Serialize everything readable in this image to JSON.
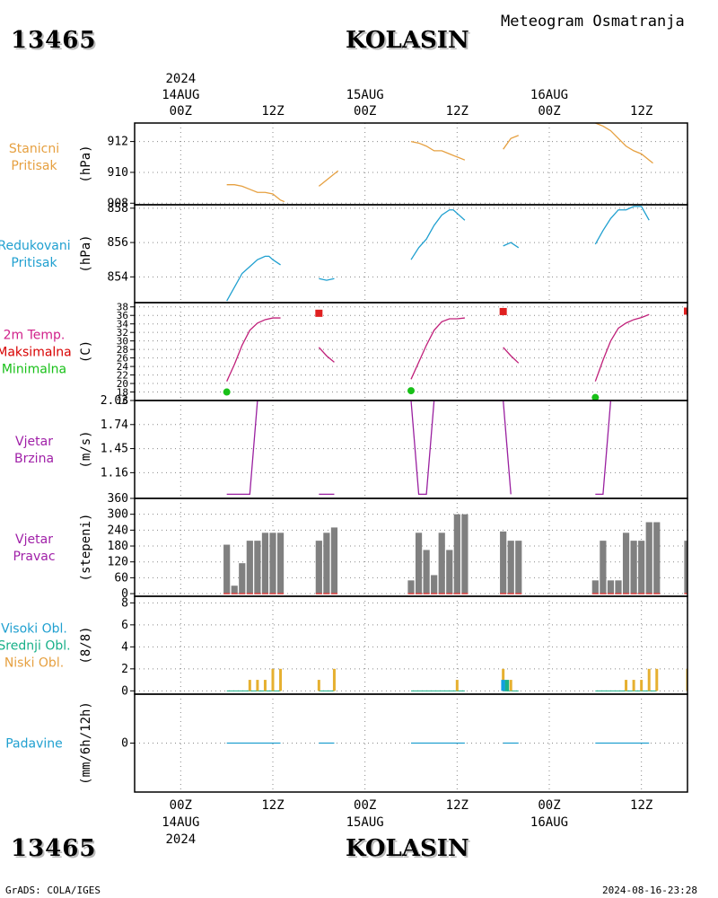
{
  "header": {
    "station_id": "13465",
    "station_name": "KOLASIN",
    "subtitle": "Meteogram Osmatranja"
  },
  "footer": {
    "station_id": "13465",
    "station_name": "KOLASIN",
    "credit": "GrADS: COLA/IGES",
    "timestamp": "2024-08-16-23:28"
  },
  "time_axis": {
    "year": "2024",
    "hours_range": [
      -6,
      66
    ],
    "ticks": [
      {
        "hour": 0,
        "label": "00Z",
        "date": "14AUG"
      },
      {
        "hour": 12,
        "label": "12Z",
        "date": ""
      },
      {
        "hour": 24,
        "label": "00Z",
        "date": "15AUG"
      },
      {
        "hour": 36,
        "label": "12Z",
        "date": ""
      },
      {
        "hour": 48,
        "label": "00Z",
        "date": "16AUG"
      },
      {
        "hour": 60,
        "label": "12Z",
        "date": ""
      }
    ]
  },
  "chart_data": [
    {
      "type": "line",
      "panel": "station-pressure",
      "labels": [
        "Stanicni",
        "Pritisak"
      ],
      "label_color": "#e6a040",
      "unit": "(hPa)",
      "ylim": [
        907.9,
        913.2
      ],
      "yticks": [
        908,
        910,
        912
      ],
      "series": [
        {
          "color": "#e6a040",
          "segments": [
            [
              [
                6,
                909.2
              ],
              [
                7,
                909.2
              ],
              [
                8,
                909.1
              ],
              [
                9,
                908.9
              ],
              [
                10,
                908.7
              ],
              [
                11,
                908.7
              ],
              [
                12,
                908.6
              ],
              [
                13,
                908.2
              ],
              [
                13.5,
                908.1
              ]
            ],
            [
              [
                18,
                909.1
              ],
              [
                19,
                909.5
              ],
              [
                20,
                909.9
              ],
              [
                20.5,
                910.1
              ]
            ],
            [
              [
                30,
                912.0
              ],
              [
                31,
                911.9
              ],
              [
                32,
                911.7
              ],
              [
                33,
                911.4
              ],
              [
                34,
                911.4
              ],
              [
                35,
                911.2
              ],
              [
                36,
                911.0
              ],
              [
                37,
                910.8
              ]
            ],
            [
              [
                42,
                911.5
              ],
              [
                43,
                912.2
              ],
              [
                44,
                912.4
              ]
            ],
            [
              [
                54,
                913.2
              ],
              [
                55,
                913.0
              ],
              [
                56,
                912.7
              ],
              [
                57,
                912.2
              ],
              [
                58,
                911.7
              ],
              [
                59,
                911.4
              ],
              [
                60,
                911.2
              ],
              [
                61,
                910.8
              ],
              [
                61.5,
                910.6
              ]
            ],
            [
              [
                66,
                909.7
              ],
              [
                67,
                909.7
              ],
              [
                68,
                911.5
              ]
            ]
          ]
        }
      ]
    },
    {
      "type": "line",
      "panel": "reduced-pressure",
      "labels": [
        "Redukovani",
        "Pritisak"
      ],
      "label_color": "#20a0d0",
      "unit": "(hPa)",
      "ylim": [
        852.5,
        858.2
      ],
      "yticks": [
        854,
        856,
        858
      ],
      "series": [
        {
          "color": "#20a0d0",
          "segments": [
            [
              [
                6,
                852.6
              ],
              [
                7,
                853.4
              ],
              [
                8,
                854.2
              ],
              [
                9,
                854.6
              ],
              [
                10,
                855.0
              ],
              [
                11,
                855.2
              ],
              [
                11.5,
                855.2
              ],
              [
                12,
                855.0
              ],
              [
                13,
                854.7
              ]
            ],
            [
              [
                18,
                853.9
              ],
              [
                19,
                853.8
              ],
              [
                20,
                853.9
              ]
            ],
            [
              [
                30,
                855.0
              ],
              [
                31,
                855.7
              ],
              [
                32,
                856.2
              ],
              [
                33,
                857.0
              ],
              [
                34,
                857.6
              ],
              [
                35,
                857.9
              ],
              [
                35.5,
                857.9
              ],
              [
                36,
                857.7
              ],
              [
                37,
                857.3
              ]
            ],
            [
              [
                42,
                855.8
              ],
              [
                43,
                856.0
              ],
              [
                44,
                855.7
              ]
            ],
            [
              [
                54,
                855.9
              ],
              [
                55,
                856.7
              ],
              [
                56,
                857.4
              ],
              [
                57,
                857.9
              ],
              [
                58,
                857.9
              ],
              [
                59,
                858.1
              ],
              [
                59.5,
                858.1
              ],
              [
                60,
                858.1
              ],
              [
                61,
                857.3
              ]
            ],
            [
              [
                66,
                854.5
              ],
              [
                67,
                854.1
              ],
              [
                68,
                855.4
              ]
            ]
          ]
        }
      ]
    },
    {
      "type": "line",
      "panel": "temperature",
      "labels": [
        "2m Temp.",
        "Maksimalna",
        "Minimalna"
      ],
      "label_colors": [
        "#d0208a",
        "#d80000",
        "#18c018"
      ],
      "unit": "(C)",
      "ylim": [
        16,
        39
      ],
      "yticks": [
        16,
        18,
        20,
        22,
        24,
        26,
        28,
        30,
        32,
        34,
        36,
        38
      ],
      "ytick_labels": [
        "16",
        "18",
        "20",
        "22",
        "24",
        "26",
        "28",
        "30",
        "32",
        "34",
        "36",
        "38"
      ],
      "series": [
        {
          "name": "2m Temp.",
          "color": "#c0207a",
          "segments": [
            [
              [
                6,
                20.5
              ],
              [
                7,
                24.5
              ],
              [
                8,
                29.0
              ],
              [
                9,
                32.5
              ],
              [
                10,
                34.2
              ],
              [
                11,
                35.0
              ],
              [
                12,
                35.4
              ],
              [
                13,
                35.4
              ]
            ],
            [
              [
                18,
                28.5
              ],
              [
                19,
                26.5
              ],
              [
                20,
                25.0
              ]
            ],
            [
              [
                30,
                21.0
              ],
              [
                31,
                25.0
              ],
              [
                32,
                29.0
              ],
              [
                33,
                32.5
              ],
              [
                34,
                34.5
              ],
              [
                35,
                35.2
              ],
              [
                36,
                35.2
              ],
              [
                37,
                35.4
              ]
            ],
            [
              [
                42,
                28.5
              ],
              [
                43,
                26.5
              ],
              [
                44,
                24.8
              ]
            ],
            [
              [
                54,
                20.5
              ],
              [
                55,
                25.5
              ],
              [
                56,
                30.0
              ],
              [
                57,
                33.0
              ],
              [
                58,
                34.2
              ],
              [
                59,
                35.0
              ],
              [
                60,
                35.5
              ],
              [
                61,
                36.2
              ]
            ],
            [
              [
                66,
                28.5
              ],
              [
                67,
                26.5
              ],
              [
                68,
                25.5
              ]
            ]
          ]
        }
      ],
      "markers": {
        "max": {
          "color": "#e02020",
          "points": [
            [
              18,
              36.5
            ],
            [
              42,
              36.9
            ],
            [
              66,
              37.0
            ]
          ]
        },
        "min": {
          "color": "#18c018",
          "points": [
            [
              6,
              18.0
            ],
            [
              30,
              18.3
            ],
            [
              54,
              16.7
            ]
          ]
        }
      }
    },
    {
      "type": "line",
      "panel": "wind-speed",
      "labels": [
        "Vjetar",
        "Brzina"
      ],
      "label_color": "#a020a8",
      "unit": "(m/s)",
      "ylim": [
        0.85,
        2.03
      ],
      "yticks": [
        1.16,
        1.45,
        1.74,
        2.03
      ],
      "ytick_labels": [
        "1.16",
        "1.45",
        "1.74",
        "2.03"
      ],
      "series": [
        {
          "color": "#9a20a0",
          "segments": [
            [
              [
                6,
                0.9
              ],
              [
                9,
                0.9
              ],
              [
                10,
                2.03
              ],
              [
                13,
                2.03
              ]
            ],
            [
              [
                18,
                0.9
              ],
              [
                20,
                0.9
              ]
            ],
            [
              [
                30,
                2.03
              ],
              [
                31,
                0.9
              ],
              [
                32,
                0.9
              ],
              [
                33,
                2.03
              ],
              [
                37,
                2.03
              ]
            ],
            [
              [
                41,
                2.03
              ],
              [
                42,
                2.03
              ],
              [
                43,
                0.9
              ]
            ],
            [
              [
                54,
                0.9
              ],
              [
                55,
                0.9
              ],
              [
                56,
                2.03
              ],
              [
                61,
                2.03
              ]
            ],
            [
              [
                66,
                0.9
              ],
              [
                68,
                0.9
              ]
            ]
          ]
        }
      ]
    },
    {
      "type": "bar",
      "panel": "wind-direction",
      "labels": [
        "Vjetar",
        "Pravac"
      ],
      "label_color": "#a020a8",
      "unit": "(stepeni)",
      "ylim": [
        -10,
        360
      ],
      "yticks": [
        0,
        60,
        120,
        180,
        240,
        300,
        360
      ],
      "bar_color": "#808080",
      "baseline_color": "#e04040",
      "x": [
        6,
        7,
        8,
        9,
        10,
        11,
        12,
        13,
        18,
        19,
        20,
        30,
        31,
        32,
        33,
        34,
        35,
        36,
        37,
        42,
        43,
        44,
        54,
        55,
        56,
        57,
        58,
        59,
        60,
        61,
        62,
        66,
        67,
        68
      ],
      "values": [
        185,
        30,
        115,
        200,
        200,
        230,
        230,
        230,
        200,
        230,
        250,
        50,
        230,
        165,
        70,
        230,
        165,
        300,
        300,
        235,
        200,
        200,
        50,
        200,
        50,
        50,
        230,
        200,
        200,
        270,
        270,
        200,
        200,
        200
      ]
    },
    {
      "type": "bar",
      "panel": "clouds",
      "labels": [
        "Visoki Obl.",
        "Srednji Obl.",
        "Niski Obl."
      ],
      "label_colors": [
        "#20a0d0",
        "#18b088",
        "#e6a040"
      ],
      "unit": "(8/8)",
      "ylim": [
        -0.3,
        8.6
      ],
      "yticks": [
        0,
        2,
        4,
        6,
        8
      ],
      "series": [
        {
          "name": "Niski Obl.",
          "color": "#e6b030",
          "x": [
            9,
            10,
            11,
            12,
            13,
            18,
            20,
            36,
            42,
            43,
            58,
            59,
            60,
            61,
            62,
            66,
            67
          ],
          "values": [
            1,
            1,
            1,
            2,
            2,
            1,
            2,
            1,
            2,
            1,
            1,
            1,
            1,
            2,
            2,
            2,
            1
          ]
        },
        {
          "name": "Visoki Obl.",
          "color": "#10a0e0",
          "x": [
            42,
            68
          ],
          "values": [
            1,
            2
          ]
        },
        {
          "name": "Srednji Obl.",
          "color": "#18b088",
          "x": [
            42.5
          ],
          "values": [
            1
          ]
        }
      ]
    },
    {
      "type": "line",
      "panel": "precipitation",
      "labels": [
        "Padavine"
      ],
      "label_color": "#20a0d0",
      "unit": "(mm/6h/12h)",
      "ylim": [
        -4,
        4
      ],
      "yticks": [
        0
      ],
      "series": [
        {
          "color": "#20a0d0",
          "segments": [
            [
              [
                6,
                0
              ],
              [
                13,
                0
              ]
            ],
            [
              [
                18,
                0
              ],
              [
                20,
                0
              ]
            ],
            [
              [
                30,
                0
              ],
              [
                37,
                0
              ]
            ],
            [
              [
                42,
                0
              ],
              [
                44,
                0
              ]
            ],
            [
              [
                54,
                0
              ],
              [
                61,
                0
              ]
            ],
            [
              [
                66,
                0
              ],
              [
                68,
                0
              ]
            ]
          ]
        }
      ]
    }
  ]
}
